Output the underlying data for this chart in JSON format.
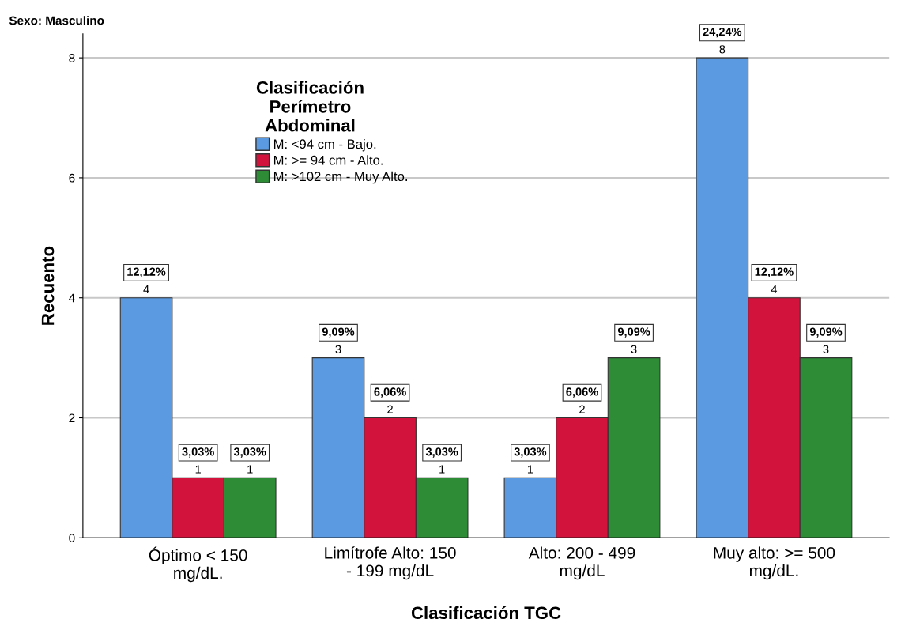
{
  "chart_data": {
    "type": "bar",
    "title": "Sexo: Masculino",
    "xlabel": "Clasificación TGC",
    "ylabel": "Recuento",
    "legend_title": "Clasificación\nPerímetro\nAbdominal",
    "categories": [
      "Óptimo < 150\nmg/dL.",
      "Limítrofe Alto: 150\n- 199 mg/dL",
      "Alto: 200 - 499\nmg/dL",
      "Muy alto: >= 500\nmg/dL."
    ],
    "series": [
      {
        "name": "M: <94 cm - Bajo.",
        "color": "#5b9ae0",
        "values": [
          4,
          3,
          1,
          8
        ],
        "value_labels": [
          "12,12%\n4",
          "9,09%\n3",
          "3,03%\n1",
          "24,24%\n8"
        ]
      },
      {
        "name": "M: >= 94 cm - Alto.",
        "color": "#d2143c",
        "values": [
          1,
          2,
          2,
          4
        ],
        "value_labels": [
          "3,03%\n1",
          "6,06%\n2",
          "6,06%\n2",
          "12,12%\n4"
        ]
      },
      {
        "name": "M: >102 cm - Muy Alto.",
        "color": "#2e8b36",
        "values": [
          1,
          1,
          3,
          3
        ],
        "value_labels": [
          "3,03%\n1",
          "3,03%\n1",
          "9,09%\n3",
          "9,09%\n3"
        ]
      }
    ],
    "ylim": [
      0,
      8.4
    ],
    "yticks": [
      0,
      2,
      4,
      6,
      8
    ],
    "grid": "y",
    "legend": "top left"
  }
}
